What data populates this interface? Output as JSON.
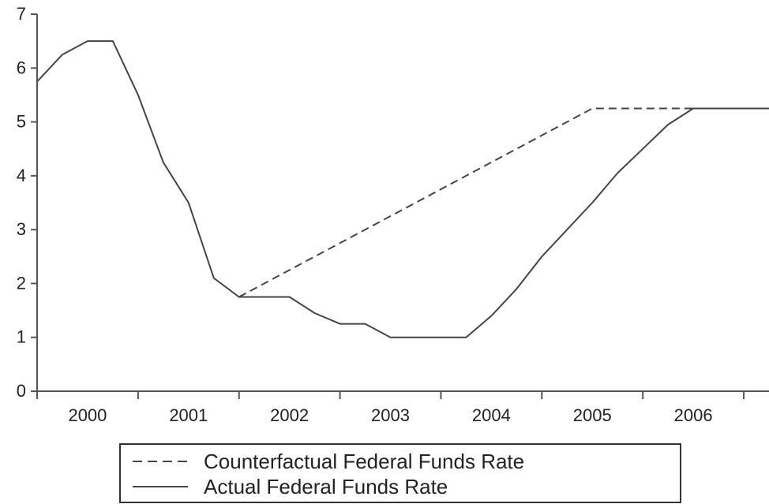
{
  "chart_data": {
    "type": "line",
    "title": "",
    "xlabel": "",
    "ylabel": "",
    "x_tick_labels": [
      "2000",
      "2001",
      "2002",
      "2003",
      "2004",
      "2005",
      "2006"
    ],
    "y_tick_labels": [
      "0",
      "1",
      "2",
      "3",
      "4",
      "5",
      "6",
      "7"
    ],
    "xlim": [
      2000.0,
      2007.25
    ],
    "ylim": [
      0,
      7
    ],
    "grid": false,
    "legend_position": "bottom-center",
    "series": [
      {
        "name": "Counterfactual Federal Funds Rate",
        "style": "dashed",
        "color": "#444444",
        "points": [
          [
            2002.0,
            1.75
          ],
          [
            2005.5,
            5.25
          ],
          [
            2007.25,
            5.25
          ]
        ]
      },
      {
        "name": "Actual Federal Funds Rate",
        "style": "solid",
        "color": "#444444",
        "points": [
          [
            2000.0,
            5.75
          ],
          [
            2000.25,
            6.25
          ],
          [
            2000.5,
            6.5
          ],
          [
            2000.75,
            6.5
          ],
          [
            2001.0,
            5.5
          ],
          [
            2001.25,
            4.25
          ],
          [
            2001.5,
            3.5
          ],
          [
            2001.75,
            2.1
          ],
          [
            2002.0,
            1.75
          ],
          [
            2002.25,
            1.75
          ],
          [
            2002.5,
            1.75
          ],
          [
            2002.75,
            1.45
          ],
          [
            2003.0,
            1.25
          ],
          [
            2003.25,
            1.25
          ],
          [
            2003.5,
            1.0
          ],
          [
            2003.75,
            1.0
          ],
          [
            2004.0,
            1.0
          ],
          [
            2004.25,
            1.0
          ],
          [
            2004.5,
            1.4
          ],
          [
            2004.75,
            1.9
          ],
          [
            2005.0,
            2.5
          ],
          [
            2005.25,
            3.0
          ],
          [
            2005.5,
            3.5
          ],
          [
            2005.75,
            4.05
          ],
          [
            2006.0,
            4.5
          ],
          [
            2006.25,
            4.95
          ],
          [
            2006.5,
            5.25
          ],
          [
            2006.75,
            5.25
          ],
          [
            2007.0,
            5.25
          ],
          [
            2007.25,
            5.25
          ]
        ]
      }
    ]
  }
}
